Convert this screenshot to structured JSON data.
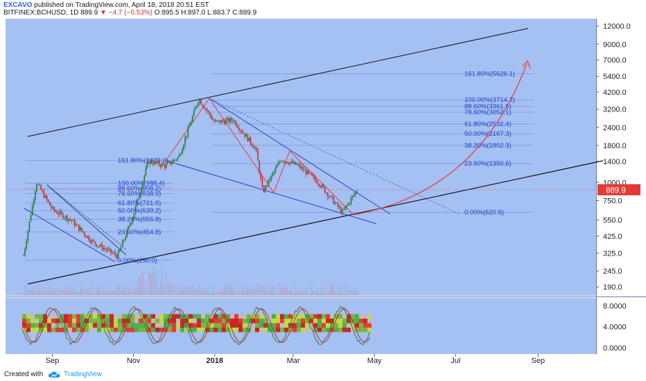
{
  "header": {
    "author": "EXCAVO",
    "published": "published on TradingView.com, April 18, 2018 20:51 EST",
    "symbol": "BITFINEX:BCHUSD, 1D",
    "last": "889.9",
    "change": "▼ −4.7 (−0.53%)",
    "open": "O:895.5",
    "high": "H:897.0",
    "low": "L:883.7",
    "close": "C:889.9"
  },
  "footer": {
    "created_with": "Created with",
    "brand": "TradingView"
  },
  "colors": {
    "background": "#a5c0f3",
    "candle_up": "#1b7a34",
    "candle_down": "#c62828",
    "trendline": "#111111",
    "fib_blue": "#1f3fbf",
    "projection": "#e53935",
    "price_tag": "#e53935"
  },
  "icons": {
    "logo": "tradingview-cloud-icon"
  },
  "chart_data": {
    "type": "line",
    "price_scale": "log",
    "title": "",
    "xlabel": "",
    "ylabel": "",
    "x_tick_labels": [
      "Sep",
      "Nov",
      "2018",
      "Mar",
      "May",
      "Jul",
      "Sep"
    ],
    "y_tick_labels": [
      "12000.0",
      "9000.0",
      "7000.0",
      "5400.0",
      "4200.0",
      "3200.0",
      "2400.0",
      "1800.0",
      "1400.0",
      "1000.0",
      "750.0",
      "550.0",
      "425.0",
      "325.0",
      "245.0",
      "190.0"
    ],
    "y_tick_values": [
      12000,
      9000,
      7000,
      5400,
      4200,
      3200,
      2400,
      1800,
      1400,
      1000,
      750,
      550,
      425,
      325,
      245,
      190
    ],
    "ylim": [
      165,
      13500
    ],
    "current_price_label": "889.9",
    "current_price": 889.9,
    "series": [
      {
        "x": [
          "2017-08-01",
          "2017-08-10",
          "2017-08-20",
          "2017-09-01",
          "2017-09-15",
          "2017-10-01",
          "2017-10-20",
          "2017-11-01",
          "2017-11-12",
          "2017-11-25",
          "2017-12-05",
          "2017-12-20",
          "2018-01-01",
          "2018-01-15",
          "2018-02-01",
          "2018-02-06",
          "2018-02-20",
          "2018-03-05",
          "2018-03-20",
          "2018-04-07",
          "2018-04-18"
        ],
        "values": [
          550,
          300,
          1000,
          650,
          550,
          390,
          310,
          600,
          1400,
          1300,
          1500,
          3800,
          2600,
          2700,
          1700,
          860,
          1450,
          1300,
          1000,
          620,
          890
        ]
      }
    ],
    "fib_left": {
      "levels": [
        "161.80%(1420.0)",
        "100.00%(988.4)",
        "88.60%(908.2)",
        "78.60%(838.9)",
        "61.80%(721.6)",
        "50.00%(639.2)",
        "38.20%(556.8)",
        "23.60%(454.8)",
        "0.00%(290.0)"
      ],
      "values": [
        1420.0,
        988.4,
        908.2,
        838.9,
        721.6,
        639.2,
        556.8,
        454.8,
        290.0
      ]
    },
    "fib_right": {
      "levels": [
        "161.80%(5626.1)",
        "100.00%(3714.2)",
        "88.60%(3361.5)",
        "78.60%(3052.1)",
        "61.80%(2532.4)",
        "50.00%(2167.3)",
        "38.20%(1802.3)",
        "23.60%(1350.6)",
        "0.00%(620.5)"
      ],
      "values": [
        5626.1,
        3714.2,
        3361.5,
        3052.1,
        2532.4,
        2167.3,
        1802.3,
        1350.6,
        620.5
      ]
    },
    "oscillator": {
      "y_tick_labels": [
        "8.0000",
        "4.0000",
        "0.0000"
      ],
      "y_tick_values": [
        8,
        4,
        0
      ],
      "ylim": [
        -1.2,
        9.5
      ]
    }
  }
}
